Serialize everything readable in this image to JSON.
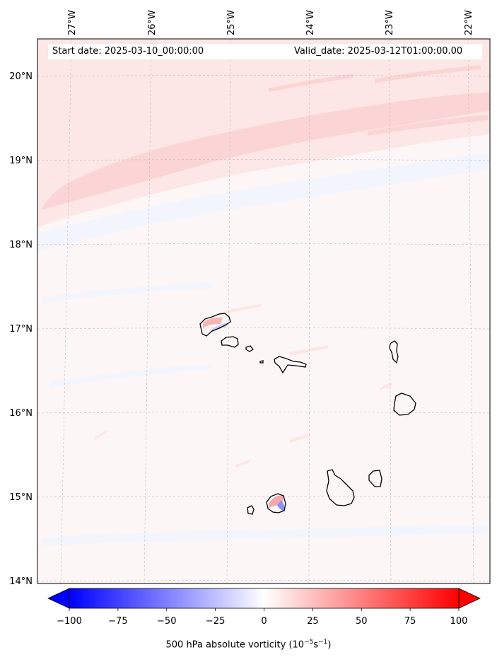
{
  "map": {
    "start_date_label": "Start date: 2025-03-10_00:00:00",
    "valid_date_label": "Valid_date: 2025-03-12T01:00:00.00",
    "lon_labels": [
      "27°W",
      "26°W",
      "25°W",
      "24°W",
      "23°W",
      "22°W"
    ],
    "lat_labels": [
      "20°N",
      "19°N",
      "18°N",
      "17°N",
      "16°N",
      "15°N",
      "14°N"
    ],
    "field_colors": {
      "background": "#fdf6f6",
      "weak_positive": "#fde6e6",
      "moderate_positive": "#fbd5d5",
      "negative": "#f3f5fc"
    }
  },
  "colorbar": {
    "ticks": [
      "−100",
      "−75",
      "−50",
      "−25",
      "0",
      "25",
      "50",
      "75",
      "100"
    ],
    "tick_values": [
      -100,
      -75,
      -50,
      -25,
      0,
      25,
      50,
      75,
      100
    ],
    "range": [
      -100,
      100
    ],
    "low_color": "#0000ff",
    "high_color": "#ff0000",
    "title_main": "500 hPa absolute vorticity (10",
    "title_exp1": "−5",
    "title_mid": "s",
    "title_exp2": "−1",
    "title_end": ")"
  }
}
